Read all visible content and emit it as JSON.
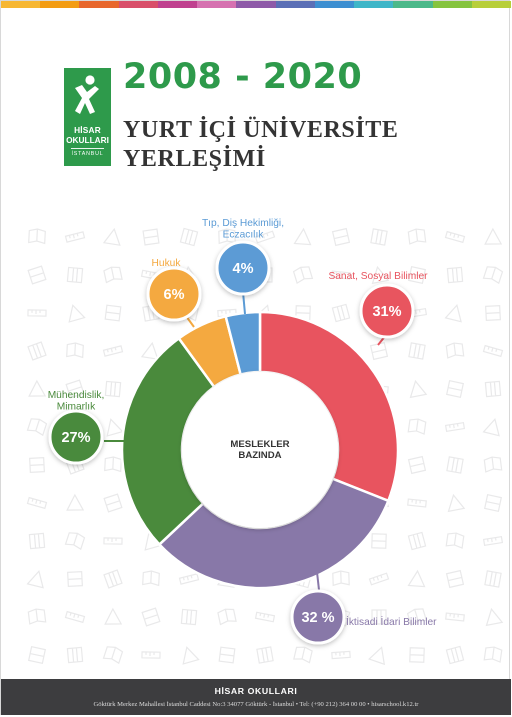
{
  "brand": {
    "logo_line1": "HİSAR",
    "logo_line2": "OKULLARI",
    "logo_city": "İSTANBUL"
  },
  "header": {
    "years": "2008 - 2020",
    "title": "YURT İÇİ ÜNİVERSİTE YERLEŞİMİ"
  },
  "top_strip_colors": [
    "#f7b733",
    "#f39c12",
    "#e8672c",
    "#d94f6a",
    "#c0418f",
    "#d671b0",
    "#8e5aa8",
    "#5b6fb6",
    "#3d8fd1",
    "#3fb6c8",
    "#4cb98a",
    "#86c43f",
    "#b8cf3a"
  ],
  "chart_data": {
    "type": "pie",
    "donut": true,
    "center_label": "MESLEKLER BAZINDA",
    "slices": [
      {
        "label": "Sanat, Sosyal Bilimler",
        "value": 31,
        "display": "31%",
        "color": "#e8545f"
      },
      {
        "label": "İktisadi İdari Bilimler",
        "value": 32,
        "display": "32 %",
        "color": "#8878a8"
      },
      {
        "label": "Mühendislik, Mimarlık",
        "value": 27,
        "display": "27%",
        "color": "#4a8a3c"
      },
      {
        "label": "Hukuk",
        "value": 6,
        "display": "6%",
        "color": "#f4a940"
      },
      {
        "label": "Tıp, Diş Hekimliği, Eczacılık",
        "value": 4,
        "display": "4%",
        "color": "#5b9bd5"
      }
    ]
  },
  "footer": {
    "org": "HİSAR OKULLARI",
    "address": "Göktürk Merkez Mahallesi İstanbul Caddesi No:3 34077 Göktürk - İstanbul  •  Tel: (+90 212) 364 00 00  •  hisarschool.k12.tr"
  }
}
